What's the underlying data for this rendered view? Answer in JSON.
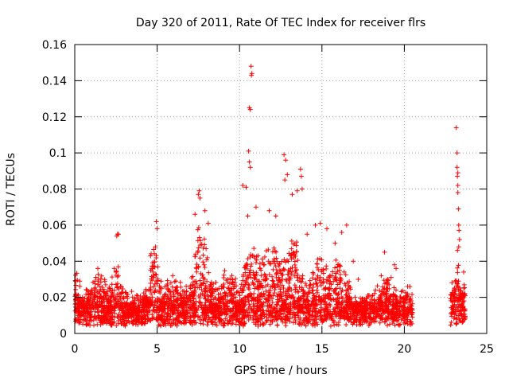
{
  "chart_data": {
    "type": "scatter",
    "title": "Day 320 of 2011, Rate Of TEC Index for receiver flrs",
    "xlabel": "GPS time / hours",
    "ylabel": "ROTI / TECUs",
    "xlim": [
      0,
      25
    ],
    "ylim": [
      0,
      0.16
    ],
    "xticks": [
      0,
      5,
      10,
      15,
      20,
      25
    ],
    "yticks": [
      0,
      0.02,
      0.04,
      0.06,
      0.08,
      0.1,
      0.12,
      0.14,
      0.16
    ],
    "xtick_labels": [
      "0",
      "5",
      "10",
      "15",
      "20",
      "25"
    ],
    "ytick_labels": [
      "0",
      "0.02",
      "0.04",
      "0.06",
      "0.08",
      "0.1",
      "0.12",
      "0.14",
      "0.16"
    ],
    "grid": true,
    "marker": "+",
    "color": "#ff0000",
    "segments": [
      {
        "start": 0.0,
        "end": 20.5,
        "base": 0.012
      },
      {
        "start": 22.8,
        "end": 23.7,
        "base": 0.018
      }
    ],
    "bumps": [
      {
        "x": 0.1,
        "width": 0.2,
        "amp": 0.01
      },
      {
        "x": 1.5,
        "width": 0.7,
        "amp": 0.012
      },
      {
        "x": 2.6,
        "width": 0.3,
        "amp": 0.02
      },
      {
        "x": 4.8,
        "width": 0.3,
        "amp": 0.03
      },
      {
        "x": 5.9,
        "width": 0.6,
        "amp": 0.01
      },
      {
        "x": 7.6,
        "width": 0.5,
        "amp": 0.04
      },
      {
        "x": 9.3,
        "width": 0.8,
        "amp": 0.012
      },
      {
        "x": 10.7,
        "width": 0.4,
        "amp": 0.035
      },
      {
        "x": 12.0,
        "width": 0.8,
        "amp": 0.03
      },
      {
        "x": 13.3,
        "width": 0.5,
        "amp": 0.035
      },
      {
        "x": 14.8,
        "width": 0.5,
        "amp": 0.025
      },
      {
        "x": 16.0,
        "width": 0.6,
        "amp": 0.02
      },
      {
        "x": 18.9,
        "width": 0.5,
        "amp": 0.01
      },
      {
        "x": 20.0,
        "width": 0.3,
        "amp": 0.008
      },
      {
        "x": 23.2,
        "width": 0.1,
        "amp": 0.025
      }
    ],
    "outliers": [
      {
        "x": 0.05,
        "y": 0.029
      },
      {
        "x": 0.3,
        "y": 0.029
      },
      {
        "x": 1.4,
        "y": 0.036
      },
      {
        "x": 2.4,
        "y": 0.036
      },
      {
        "x": 2.6,
        "y": 0.055
      },
      {
        "x": 2.55,
        "y": 0.054
      },
      {
        "x": 2.65,
        "y": 0.055
      },
      {
        "x": 4.6,
        "y": 0.043
      },
      {
        "x": 4.9,
        "y": 0.048
      },
      {
        "x": 4.95,
        "y": 0.062
      },
      {
        "x": 5.0,
        "y": 0.058
      },
      {
        "x": 7.3,
        "y": 0.066
      },
      {
        "x": 7.5,
        "y": 0.077
      },
      {
        "x": 7.55,
        "y": 0.079
      },
      {
        "x": 7.6,
        "y": 0.075
      },
      {
        "x": 7.9,
        "y": 0.068
      },
      {
        "x": 8.1,
        "y": 0.061
      },
      {
        "x": 10.2,
        "y": 0.082
      },
      {
        "x": 10.4,
        "y": 0.081
      },
      {
        "x": 10.55,
        "y": 0.101
      },
      {
        "x": 10.6,
        "y": 0.125
      },
      {
        "x": 10.65,
        "y": 0.124
      },
      {
        "x": 10.7,
        "y": 0.148
      },
      {
        "x": 10.72,
        "y": 0.143
      },
      {
        "x": 10.75,
        "y": 0.144
      },
      {
        "x": 10.6,
        "y": 0.095
      },
      {
        "x": 10.65,
        "y": 0.092
      },
      {
        "x": 10.5,
        "y": 0.065
      },
      {
        "x": 11.0,
        "y": 0.07
      },
      {
        "x": 11.8,
        "y": 0.068
      },
      {
        "x": 12.2,
        "y": 0.065
      },
      {
        "x": 12.7,
        "y": 0.099
      },
      {
        "x": 12.8,
        "y": 0.096
      },
      {
        "x": 12.9,
        "y": 0.088
      },
      {
        "x": 12.75,
        "y": 0.085
      },
      {
        "x": 13.2,
        "y": 0.077
      },
      {
        "x": 13.5,
        "y": 0.079
      },
      {
        "x": 13.7,
        "y": 0.091
      },
      {
        "x": 13.75,
        "y": 0.087
      },
      {
        "x": 13.8,
        "y": 0.08
      },
      {
        "x": 14.1,
        "y": 0.055
      },
      {
        "x": 14.6,
        "y": 0.06
      },
      {
        "x": 14.9,
        "y": 0.061
      },
      {
        "x": 15.3,
        "y": 0.058
      },
      {
        "x": 15.8,
        "y": 0.05
      },
      {
        "x": 16.2,
        "y": 0.056
      },
      {
        "x": 16.5,
        "y": 0.06
      },
      {
        "x": 16.9,
        "y": 0.04
      },
      {
        "x": 17.2,
        "y": 0.03
      },
      {
        "x": 18.6,
        "y": 0.032
      },
      {
        "x": 18.8,
        "y": 0.045
      },
      {
        "x": 19.0,
        "y": 0.03
      },
      {
        "x": 19.4,
        "y": 0.038
      },
      {
        "x": 19.5,
        "y": 0.036
      },
      {
        "x": 19.2,
        "y": 0.031
      },
      {
        "x": 20.2,
        "y": 0.026
      },
      {
        "x": 23.15,
        "y": 0.114
      },
      {
        "x": 23.2,
        "y": 0.1
      },
      {
        "x": 23.2,
        "y": 0.092
      },
      {
        "x": 23.25,
        "y": 0.089
      },
      {
        "x": 23.22,
        "y": 0.087
      },
      {
        "x": 23.25,
        "y": 0.082
      },
      {
        "x": 23.25,
        "y": 0.078
      },
      {
        "x": 23.28,
        "y": 0.069
      },
      {
        "x": 23.3,
        "y": 0.06
      },
      {
        "x": 23.32,
        "y": 0.057
      },
      {
        "x": 23.35,
        "y": 0.052
      },
      {
        "x": 23.3,
        "y": 0.048
      },
      {
        "x": 23.6,
        "y": 0.034
      },
      {
        "x": 23.1,
        "y": 0.029
      }
    ]
  }
}
